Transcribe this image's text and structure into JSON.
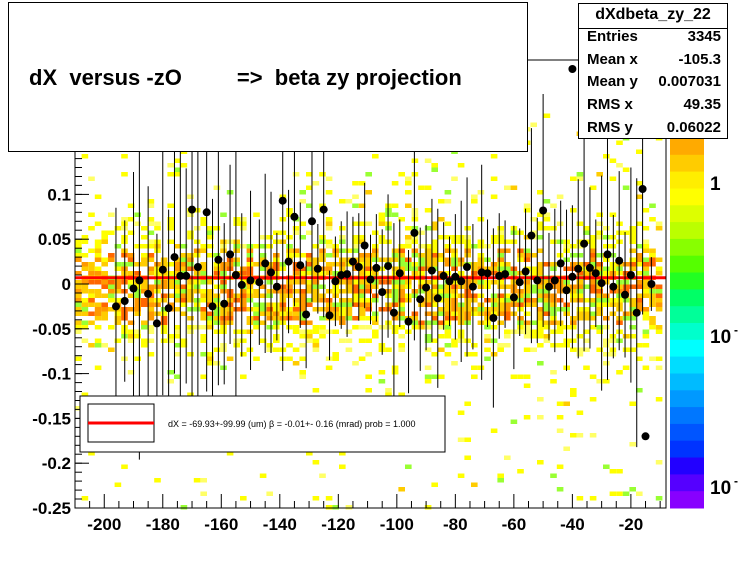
{
  "title": "dX  versus -zO         =>  beta zy projection",
  "stats": {
    "name": "dXdbeta_zy_22",
    "rows": [
      {
        "label": "Entries",
        "value": "3345"
      },
      {
        "label": "Mean x",
        "value": "-105.3"
      },
      {
        "label": "Mean y",
        "value": "0.007031"
      },
      {
        "label": "RMS x",
        "value": "49.35"
      },
      {
        "label": "RMS y",
        "value": "0.06022"
      }
    ]
  },
  "legend": {
    "text": "dX = -69.93+-99.99 (um) β = -0.01+- 0.16 (mrad) prob = 1.000"
  },
  "colorbar": {
    "labels": [
      "1",
      "10",
      "10"
    ]
  },
  "colors": {
    "fit_line": "#ff0000",
    "points": "#000000",
    "frame": "#000000"
  },
  "chart_data": {
    "type": "scatter",
    "xlim": [
      -210,
      -8
    ],
    "ylim": [
      -0.25,
      0.25
    ],
    "xticks": [
      -200,
      -180,
      -160,
      -140,
      -120,
      -100,
      -80,
      -60,
      -40,
      -20
    ],
    "xtick_labels": [
      "-200",
      "-180",
      "-160",
      "-140",
      "-120",
      "-100",
      "-80",
      "-60",
      "-40",
      "-20"
    ],
    "yticks": [
      -0.25,
      -0.2,
      -0.15,
      -0.1,
      -0.05,
      0,
      0.05,
      0.1
    ],
    "ytick_labels": [
      "-0.25",
      "-0.2",
      "-0.15",
      "-0.1",
      "-0.05",
      "0",
      "0.05",
      "0.1"
    ],
    "fit_line": {
      "intercept": 0.007,
      "slope": 0.0
    },
    "points": [
      {
        "x": -196,
        "y": -0.025,
        "err": 0.11
      },
      {
        "x": -193,
        "y": -0.019,
        "err": 0.09
      },
      {
        "x": -190,
        "y": -0.005,
        "err": 0.13
      },
      {
        "x": -188,
        "y": 0.004,
        "err": 0.2
      },
      {
        "x": -185,
        "y": -0.011,
        "err": 0.12
      },
      {
        "x": -182,
        "y": -0.044,
        "err": 0.1
      },
      {
        "x": -180,
        "y": 0.016,
        "err": 0.14
      },
      {
        "x": -178,
        "y": -0.027,
        "err": 0.11
      },
      {
        "x": -176,
        "y": 0.03,
        "err": 0.13
      },
      {
        "x": -174,
        "y": 0.009,
        "err": 0.16
      },
      {
        "x": -172,
        "y": 0.009,
        "err": 0.12
      },
      {
        "x": -170,
        "y": 0.083,
        "err": 0.22
      },
      {
        "x": -168,
        "y": 0.019,
        "err": 0.18
      },
      {
        "x": -165,
        "y": 0.08,
        "err": 0.2
      },
      {
        "x": -163,
        "y": -0.025,
        "err": 0.12
      },
      {
        "x": -161,
        "y": 0.027,
        "err": 0.14
      },
      {
        "x": -159,
        "y": -0.022,
        "err": 0.09
      },
      {
        "x": -157,
        "y": 0.033,
        "err": 0.1
      },
      {
        "x": -155,
        "y": 0.01,
        "err": 0.15
      },
      {
        "x": -153,
        "y": -0.001,
        "err": 0.08
      },
      {
        "x": -150,
        "y": 0.004,
        "err": 0.1
      },
      {
        "x": -147,
        "y": 0.002,
        "err": 0.07
      },
      {
        "x": -145,
        "y": 0.023,
        "err": 0.1
      },
      {
        "x": -143,
        "y": 0.013,
        "err": 0.09
      },
      {
        "x": -141,
        "y": -0.003,
        "err": 0.06
      },
      {
        "x": -139,
        "y": 0.093,
        "err": 0.19
      },
      {
        "x": -137,
        "y": 0.025,
        "err": 0.08
      },
      {
        "x": -135,
        "y": 0.075,
        "err": 0.1
      },
      {
        "x": -133,
        "y": 0.021,
        "err": 0.07
      },
      {
        "x": -131,
        "y": -0.034,
        "err": 0.06
      },
      {
        "x": -129,
        "y": 0.07,
        "err": 0.09
      },
      {
        "x": -127,
        "y": 0.017,
        "err": 0.05
      },
      {
        "x": -125,
        "y": 0.083,
        "err": 0.12
      },
      {
        "x": -123,
        "y": -0.035,
        "err": 0.05
      },
      {
        "x": -121,
        "y": 0.003,
        "err": 0.05
      },
      {
        "x": -119,
        "y": 0.01,
        "err": 0.06
      },
      {
        "x": -117,
        "y": 0.011,
        "err": 0.07
      },
      {
        "x": -115,
        "y": 0.025,
        "err": 0.05
      },
      {
        "x": -113,
        "y": 0.019,
        "err": 0.06
      },
      {
        "x": -111,
        "y": 0.043,
        "err": 0.07
      },
      {
        "x": -109,
        "y": 0.005,
        "err": 0.05
      },
      {
        "x": -107,
        "y": 0.018,
        "err": 0.06
      },
      {
        "x": -105,
        "y": -0.009,
        "err": 0.07
      },
      {
        "x": -103,
        "y": 0.02,
        "err": 0.08
      },
      {
        "x": -101,
        "y": -0.032,
        "err": 0.1
      },
      {
        "x": -99,
        "y": 0.012,
        "err": 0.06
      },
      {
        "x": -96,
        "y": -0.042,
        "err": 0.08
      },
      {
        "x": -94,
        "y": 0.057,
        "err": 0.12
      },
      {
        "x": -92,
        "y": -0.017,
        "err": 0.08
      },
      {
        "x": -90,
        "y": -0.004,
        "err": 0.07
      },
      {
        "x": -88,
        "y": 0.015,
        "err": 0.08
      },
      {
        "x": -86,
        "y": -0.016,
        "err": 0.1
      },
      {
        "x": -84,
        "y": 0.009,
        "err": 0.06
      },
      {
        "x": -82,
        "y": 0.003,
        "err": 0.05
      },
      {
        "x": -80,
        "y": 0.008,
        "err": 0.07
      },
      {
        "x": -78,
        "y": 0.003,
        "err": 0.09
      },
      {
        "x": -76,
        "y": 0.019,
        "err": 0.1
      },
      {
        "x": -74,
        "y": -0.003,
        "err": 0.07
      },
      {
        "x": -71,
        "y": 0.013,
        "err": 0.12
      },
      {
        "x": -69,
        "y": 0.012,
        "err": 0.06
      },
      {
        "x": -67,
        "y": -0.038,
        "err": 0.1
      },
      {
        "x": -65,
        "y": 0.009,
        "err": 0.07
      },
      {
        "x": -63,
        "y": 0.011,
        "err": 0.06
      },
      {
        "x": -60,
        "y": -0.015,
        "err": 0.08
      },
      {
        "x": -58,
        "y": 0.002,
        "err": 0.06
      },
      {
        "x": -56,
        "y": 0.014,
        "err": 0.07
      },
      {
        "x": -54,
        "y": 0.054,
        "err": 0.12
      },
      {
        "x": -52,
        "y": 0.004,
        "err": 0.07
      },
      {
        "x": -50,
        "y": 0.082,
        "err": 0.13
      },
      {
        "x": -48,
        "y": -0.003,
        "err": 0.06
      },
      {
        "x": -46,
        "y": 0.004,
        "err": 0.08
      },
      {
        "x": -44,
        "y": 0.023,
        "err": 0.07
      },
      {
        "x": -42,
        "y": -0.007,
        "err": 0.09
      },
      {
        "x": -40,
        "y": 0.008,
        "err": 0.08
      },
      {
        "x": -38,
        "y": 0.017,
        "err": 0.1
      },
      {
        "x": -36,
        "y": 0.045,
        "err": 0.12
      },
      {
        "x": -34,
        "y": 0.018,
        "err": 0.09
      },
      {
        "x": -32,
        "y": 0.012,
        "err": 0.06
      },
      {
        "x": -30,
        "y": 0.001,
        "err": 0.12
      },
      {
        "x": -28,
        "y": 0.033,
        "err": 0.14
      },
      {
        "x": -26,
        "y": -0.003,
        "err": 0.08
      },
      {
        "x": -24,
        "y": 0.026,
        "err": 0.1
      },
      {
        "x": -22,
        "y": -0.012,
        "err": 0.07
      },
      {
        "x": -20,
        "y": 0.01,
        "err": 0.12
      },
      {
        "x": -18,
        "y": -0.032,
        "err": 0.15
      },
      {
        "x": -16,
        "y": 0.106,
        "err": 0.14
      },
      {
        "x": -13,
        "y": 0.0,
        "err": 0.03
      }
    ],
    "outliers": [
      {
        "x": -40,
        "y": 0.24
      },
      {
        "x": -15,
        "y": -0.17
      }
    ]
  }
}
